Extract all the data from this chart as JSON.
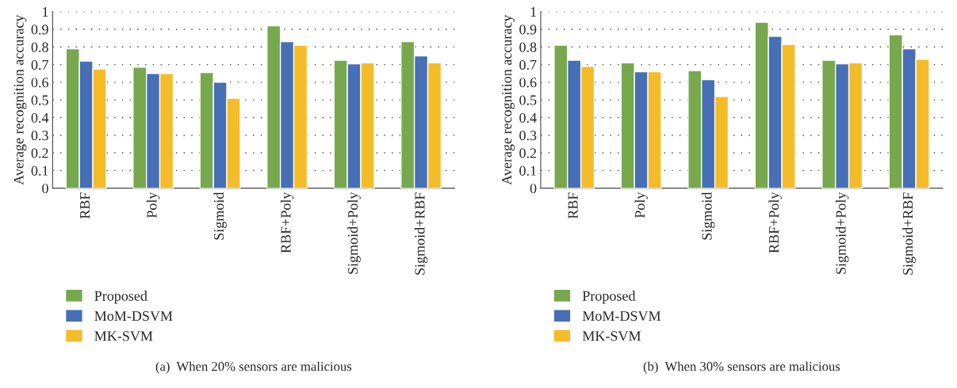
{
  "chart_data": [
    {
      "type": "bar",
      "ylabel": "Average recognition accuracy",
      "categories": [
        "RBF",
        "Poly",
        "Sigmoid",
        "RBF+Poly",
        "Sigmoid+Poly",
        "Sigmoid+RBF"
      ],
      "series": [
        {
          "name": "Proposed",
          "color": "#77a84e",
          "values": [
            0.79,
            0.685,
            0.655,
            0.92,
            0.725,
            0.83
          ]
        },
        {
          "name": "MoM-DSVM",
          "color": "#466fb6",
          "values": [
            0.72,
            0.65,
            0.6,
            0.83,
            0.705,
            0.75
          ]
        },
        {
          "name": "MK-SVM",
          "color": "#f5bc2a",
          "values": [
            0.675,
            0.65,
            0.51,
            0.81,
            0.71,
            0.71
          ]
        }
      ],
      "ylim": [
        0,
        1
      ],
      "yticks": [
        0,
        0.1,
        0.2,
        0.3,
        0.4,
        0.5,
        0.6,
        0.7,
        0.8,
        0.9,
        1
      ],
      "grid": "y",
      "legend": "bottom left",
      "annotations": [
        "(a)  When 20% sensors are malicious"
      ]
    },
    {
      "type": "bar",
      "ylabel": "Average recognition accuracy",
      "categories": [
        "RBF",
        "Poly",
        "Sigmoid",
        "RBF+Poly",
        "Sigmoid+Poly",
        "Sigmoid+RBF"
      ],
      "series": [
        {
          "name": "Proposed",
          "color": "#77a84e",
          "values": [
            0.81,
            0.71,
            0.665,
            0.94,
            0.725,
            0.87
          ]
        },
        {
          "name": "MoM-DSVM",
          "color": "#466fb6",
          "values": [
            0.725,
            0.66,
            0.615,
            0.86,
            0.705,
            0.79
          ]
        },
        {
          "name": "MK-SVM",
          "color": "#f5bc2a",
          "values": [
            0.69,
            0.66,
            0.52,
            0.815,
            0.71,
            0.73
          ]
        }
      ],
      "ylim": [
        0,
        1
      ],
      "yticks": [
        0,
        0.1,
        0.2,
        0.3,
        0.4,
        0.5,
        0.6,
        0.7,
        0.8,
        0.9,
        1
      ],
      "grid": "y",
      "legend": "bottom left",
      "annotations": [
        "(b)  When 30% sensors are malicious"
      ]
    }
  ]
}
